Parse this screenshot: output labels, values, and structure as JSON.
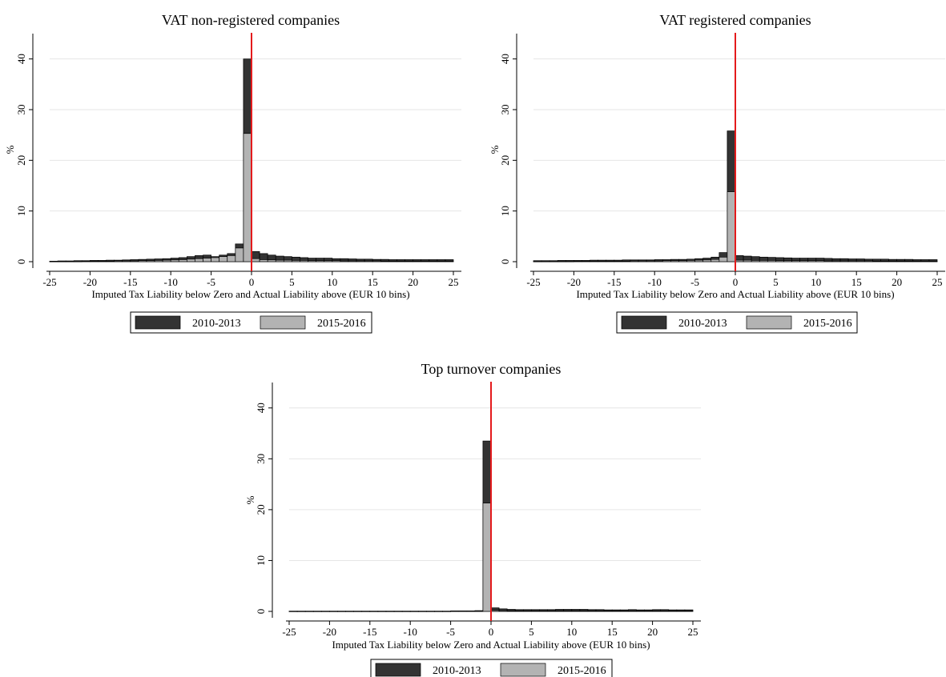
{
  "figure": {
    "legend": [
      {
        "label": "2010-2013",
        "color": "#333333"
      },
      {
        "label": "2015-2016",
        "color": "#b3b3b3"
      }
    ],
    "zero_line_color": "#e41a1c"
  },
  "chart_data": [
    {
      "type": "bar",
      "title": "VAT non-registered companies",
      "xlabel": "Imputed Tax Liability below Zero and Actual Liability above (EUR 10 bins)",
      "ylabel": "%",
      "xlim": [
        -25,
        25
      ],
      "ylim": [
        0,
        45
      ],
      "xticks": [
        -25,
        -20,
        -15,
        -10,
        -5,
        0,
        5,
        10,
        15,
        20,
        25
      ],
      "yticks": [
        0,
        10,
        20,
        30,
        40
      ],
      "grid": true,
      "legend_position": "bottom-center",
      "bins": [
        -25,
        -24,
        -23,
        -22,
        -21,
        -20,
        -19,
        -18,
        -17,
        -16,
        -15,
        -14,
        -13,
        -12,
        -11,
        -10,
        -9,
        -8,
        -7,
        -6,
        -5,
        -4,
        -3,
        -2,
        -1,
        0,
        1,
        2,
        3,
        4,
        5,
        6,
        7,
        8,
        9,
        10,
        11,
        12,
        13,
        14,
        15,
        16,
        17,
        18,
        19,
        20,
        21,
        22,
        23,
        24
      ],
      "series": [
        {
          "name": "2010-2013",
          "values": [
            0.1,
            0.15,
            0.15,
            0.2,
            0.2,
            0.25,
            0.25,
            0.3,
            0.3,
            0.35,
            0.4,
            0.45,
            0.5,
            0.55,
            0.6,
            0.7,
            0.8,
            1.0,
            1.2,
            1.3,
            1.0,
            1.3,
            1.6,
            3.5,
            40.0,
            2.0,
            1.6,
            1.3,
            1.1,
            1.0,
            0.9,
            0.8,
            0.7,
            0.7,
            0.7,
            0.6,
            0.6,
            0.55,
            0.5,
            0.5,
            0.45,
            0.45,
            0.4,
            0.4,
            0.4,
            0.4,
            0.4,
            0.4,
            0.4,
            0.4
          ]
        },
        {
          "name": "2015-2016",
          "values": [
            0.05,
            0.05,
            0.05,
            0.05,
            0.1,
            0.1,
            0.1,
            0.1,
            0.15,
            0.15,
            0.15,
            0.2,
            0.2,
            0.25,
            0.3,
            0.35,
            0.4,
            0.5,
            0.6,
            0.7,
            0.8,
            1.0,
            1.2,
            2.7,
            25.3,
            0.6,
            0.4,
            0.35,
            0.3,
            0.3,
            0.25,
            0.25,
            0.2,
            0.2,
            0.2,
            0.2,
            0.15,
            0.15,
            0.15,
            0.15,
            0.15,
            0.1,
            0.1,
            0.1,
            0.1,
            0.1,
            0.1,
            0.1,
            0.1,
            0.1
          ]
        }
      ]
    },
    {
      "type": "bar",
      "title": "VAT registered companies",
      "xlabel": "Imputed Tax Liability below Zero and Actual Liability above (EUR 10 bins)",
      "ylabel": "%",
      "xlim": [
        -25,
        25
      ],
      "ylim": [
        0,
        45
      ],
      "xticks": [
        -25,
        -20,
        -15,
        -10,
        -5,
        0,
        5,
        10,
        15,
        20,
        25
      ],
      "yticks": [
        0,
        10,
        20,
        30,
        40
      ],
      "grid": true,
      "legend_position": "bottom-center",
      "bins": [
        -25,
        -24,
        -23,
        -22,
        -21,
        -20,
        -19,
        -18,
        -17,
        -16,
        -15,
        -14,
        -13,
        -12,
        -11,
        -10,
        -9,
        -8,
        -7,
        -6,
        -5,
        -4,
        -3,
        -2,
        -1,
        0,
        1,
        2,
        3,
        4,
        5,
        6,
        7,
        8,
        9,
        10,
        11,
        12,
        13,
        14,
        15,
        16,
        17,
        18,
        19,
        20,
        21,
        22,
        23,
        24
      ],
      "series": [
        {
          "name": "2010-2013",
          "values": [
            0.2,
            0.2,
            0.2,
            0.25,
            0.25,
            0.25,
            0.25,
            0.3,
            0.3,
            0.3,
            0.3,
            0.35,
            0.35,
            0.35,
            0.35,
            0.4,
            0.4,
            0.45,
            0.45,
            0.5,
            0.6,
            0.7,
            0.9,
            1.8,
            25.8,
            1.2,
            1.1,
            1.0,
            0.9,
            0.85,
            0.8,
            0.75,
            0.7,
            0.7,
            0.7,
            0.7,
            0.65,
            0.6,
            0.6,
            0.55,
            0.55,
            0.5,
            0.5,
            0.5,
            0.45,
            0.45,
            0.45,
            0.4,
            0.4,
            0.4
          ]
        },
        {
          "name": "2015-2016",
          "values": [
            0.05,
            0.05,
            0.05,
            0.05,
            0.05,
            0.1,
            0.1,
            0.1,
            0.1,
            0.1,
            0.1,
            0.1,
            0.15,
            0.15,
            0.15,
            0.15,
            0.2,
            0.2,
            0.2,
            0.25,
            0.3,
            0.35,
            0.45,
            0.9,
            13.8,
            0.3,
            0.3,
            0.25,
            0.25,
            0.25,
            0.2,
            0.2,
            0.2,
            0.2,
            0.2,
            0.2,
            0.15,
            0.15,
            0.15,
            0.15,
            0.15,
            0.15,
            0.1,
            0.1,
            0.1,
            0.1,
            0.1,
            0.1,
            0.1,
            0.1
          ]
        }
      ]
    },
    {
      "type": "bar",
      "title": "Top turnover companies",
      "xlabel": "Imputed Tax Liability below Zero and Actual Liability above (EUR 10 bins)",
      "ylabel": "%",
      "xlim": [
        -25,
        25
      ],
      "ylim": [
        0,
        45
      ],
      "xticks": [
        -25,
        -20,
        -15,
        -10,
        -5,
        0,
        5,
        10,
        15,
        20,
        25
      ],
      "yticks": [
        0,
        10,
        20,
        30,
        40
      ],
      "grid": true,
      "legend_position": "bottom-center",
      "bins": [
        -25,
        -24,
        -23,
        -22,
        -21,
        -20,
        -19,
        -18,
        -17,
        -16,
        -15,
        -14,
        -13,
        -12,
        -11,
        -10,
        -9,
        -8,
        -7,
        -6,
        -5,
        -4,
        -3,
        -2,
        -1,
        0,
        1,
        2,
        3,
        4,
        5,
        6,
        7,
        8,
        9,
        10,
        11,
        12,
        13,
        14,
        15,
        16,
        17,
        18,
        19,
        20,
        21,
        22,
        23,
        24
      ],
      "series": [
        {
          "name": "2010-2013",
          "values": [
            0.05,
            0.05,
            0.05,
            0.05,
            0.05,
            0.05,
            0.05,
            0.05,
            0.05,
            0.05,
            0.05,
            0.05,
            0.05,
            0.05,
            0.05,
            0.05,
            0.05,
            0.05,
            0.05,
            0.05,
            0.1,
            0.1,
            0.1,
            0.15,
            33.5,
            0.7,
            0.5,
            0.4,
            0.35,
            0.35,
            0.35,
            0.35,
            0.35,
            0.4,
            0.4,
            0.4,
            0.4,
            0.35,
            0.35,
            0.3,
            0.3,
            0.3,
            0.35,
            0.3,
            0.3,
            0.35,
            0.35,
            0.3,
            0.3,
            0.3
          ]
        },
        {
          "name": "2015-2016",
          "values": [
            0.02,
            0.02,
            0.02,
            0.02,
            0.02,
            0.02,
            0.02,
            0.02,
            0.02,
            0.02,
            0.02,
            0.02,
            0.02,
            0.02,
            0.02,
            0.02,
            0.02,
            0.02,
            0.02,
            0.02,
            0.05,
            0.05,
            0.05,
            0.05,
            21.3,
            0.2,
            0.15,
            0.1,
            0.1,
            0.1,
            0.1,
            0.1,
            0.1,
            0.1,
            0.1,
            0.1,
            0.1,
            0.1,
            0.1,
            0.1,
            0.1,
            0.1,
            0.1,
            0.1,
            0.1,
            0.1,
            0.1,
            0.1,
            0.1,
            0.1
          ]
        }
      ]
    }
  ]
}
